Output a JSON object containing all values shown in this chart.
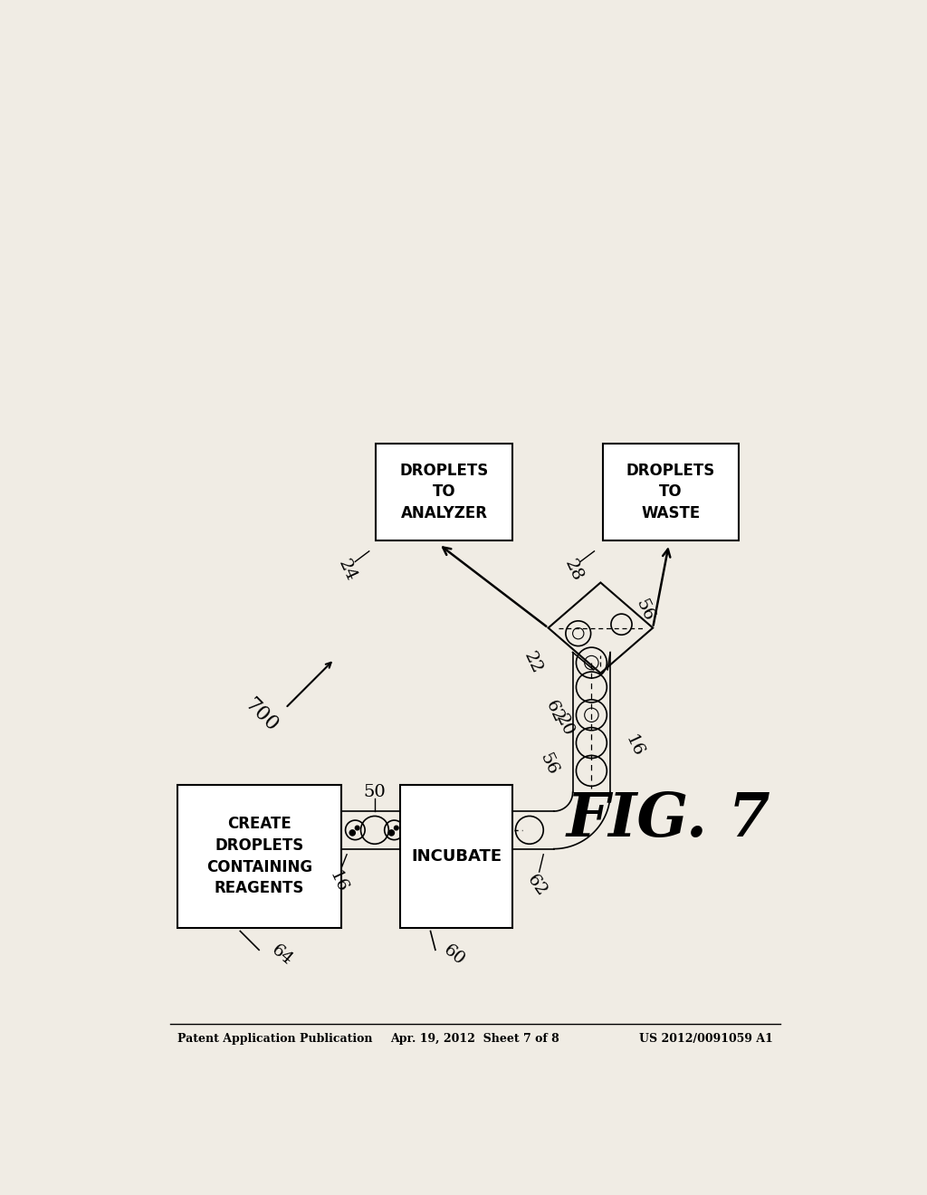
{
  "bg_color": "#f0ece4",
  "header_left": "Patent Application Publication",
  "header_center": "Apr. 19, 2012  Sheet 7 of 8",
  "header_right": "US 2012/0091059 A1",
  "fig_label": "FIG. 7",
  "system_label": "700"
}
